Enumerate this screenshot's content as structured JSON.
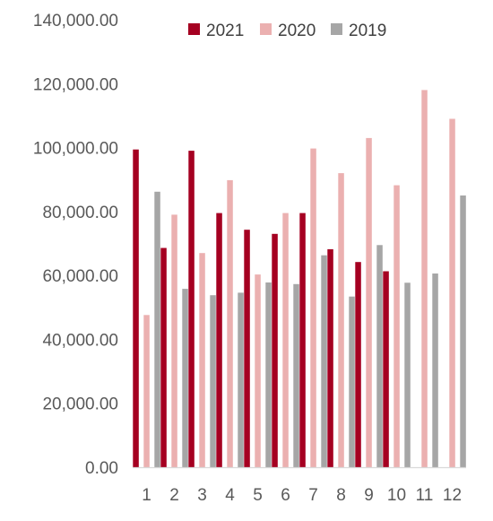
{
  "chart_data": {
    "type": "bar",
    "title": "",
    "xlabel": "",
    "ylabel": "",
    "categories": [
      "1",
      "2",
      "3",
      "4",
      "5",
      "6",
      "7",
      "8",
      "9",
      "10",
      "11",
      "12"
    ],
    "series": [
      {
        "name": "2021",
        "color": "#A50021",
        "values": [
          99400,
          68600,
          99000,
          79500,
          74300,
          73000,
          79500,
          68200,
          64200,
          61300,
          null,
          null
        ]
      },
      {
        "name": "2020",
        "color": "#EBB0B0",
        "values": [
          47600,
          79000,
          67000,
          89800,
          60300,
          79500,
          99700,
          92000,
          103000,
          88200,
          118000,
          109000
        ]
      },
      {
        "name": "2019",
        "color": "#A6A6A6",
        "values": [
          86200,
          55800,
          53800,
          54600,
          57800,
          57300,
          66300,
          53400,
          69500,
          57700,
          60600,
          85000
        ]
      }
    ],
    "y_ticks": [
      "0.00",
      "20,000.00",
      "40,000.00",
      "60,000.00",
      "80,000.00",
      "100,000.00",
      "120,000.00",
      "140,000.00"
    ],
    "ylim": [
      0,
      140000
    ],
    "grid": false,
    "legend_position": "top"
  }
}
